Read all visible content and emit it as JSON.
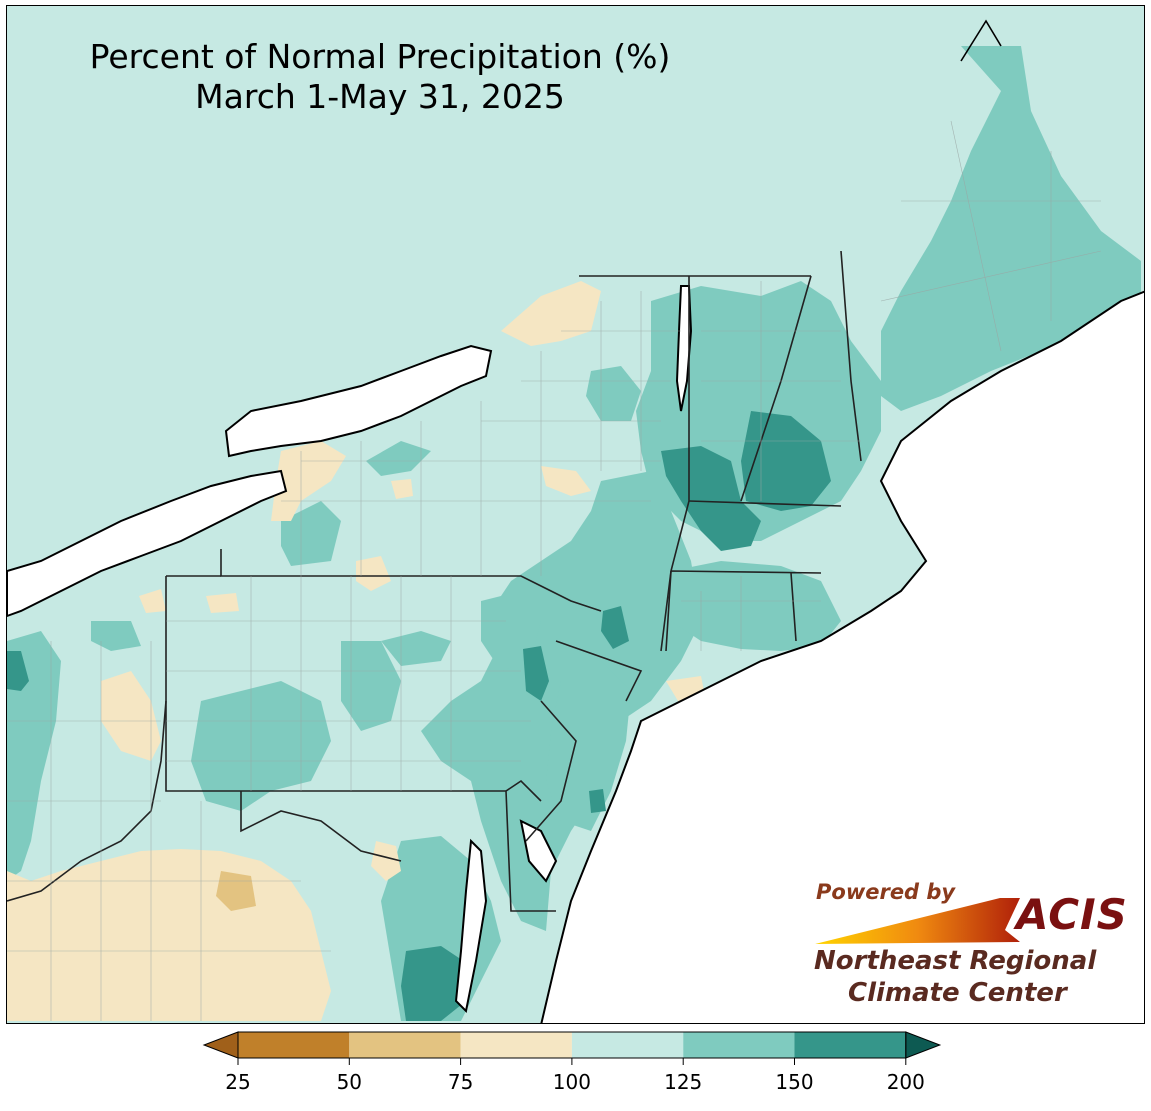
{
  "title": {
    "line1": "Percent of Normal Precipitation (%)",
    "line2": "March 1-May 31, 2025"
  },
  "logo": {
    "powered_by": "Powered by",
    "acis": "ACIS",
    "org_line1": "Northeast Regional",
    "org_line2": "Climate Center"
  },
  "legend": {
    "ticks": [
      "25",
      "50",
      "75",
      "100",
      "125",
      "150",
      "200"
    ],
    "bins": [
      {
        "range": "<25",
        "color": "#a0601a"
      },
      {
        "range": "25-50",
        "color": "#c0802a"
      },
      {
        "range": "50-75",
        "color": "#e3c381"
      },
      {
        "range": "75-100",
        "color": "#f5e6c3"
      },
      {
        "range": "100-125",
        "color": "#c6e9e3"
      },
      {
        "range": "125-150",
        "color": "#7fcbbf"
      },
      {
        "range": "150-200",
        "color": "#35968a"
      },
      {
        "range": ">200",
        "color": "#0d5a52"
      }
    ]
  },
  "colors": {
    "water": "#ffffff",
    "land_default": "#c6e9e3",
    "border": "#000000",
    "county": "#9aa6a4"
  }
}
